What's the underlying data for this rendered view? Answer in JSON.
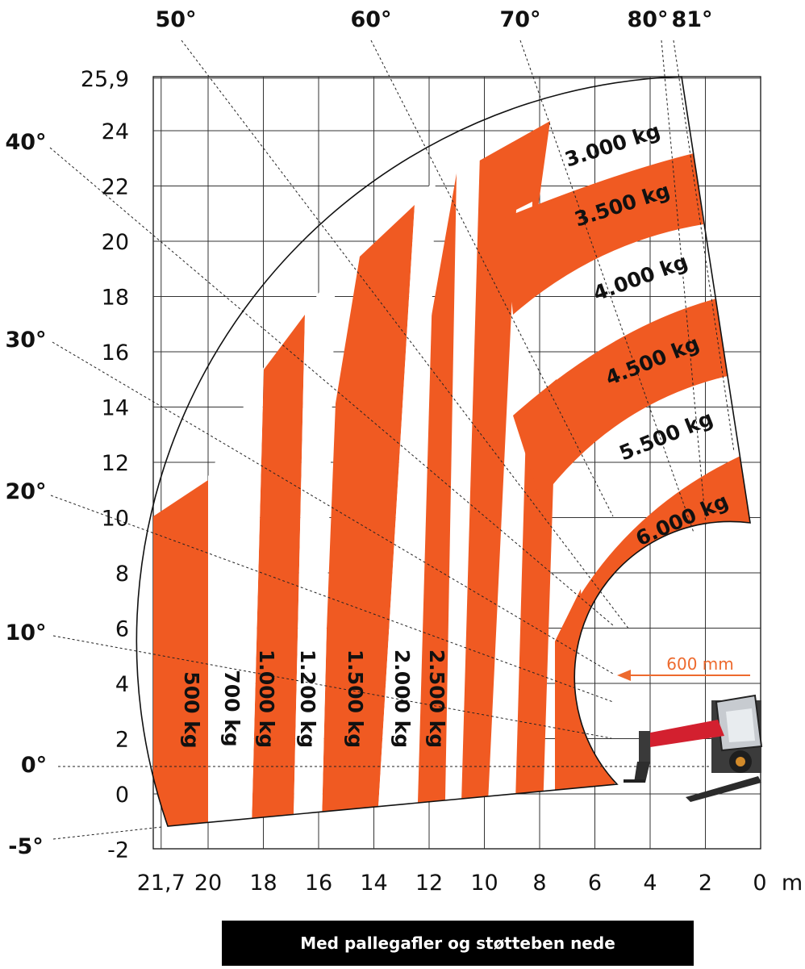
{
  "chart_data": {
    "type": "area",
    "title": "",
    "xlabel": "m",
    "ylabel": "",
    "xlim": [
      21.7,
      0
    ],
    "ylim": [
      -2,
      25.9
    ],
    "grid": true,
    "x_ticks": [
      {
        "value": 21.7,
        "label": "21,7"
      },
      {
        "value": 20,
        "label": "20"
      },
      {
        "value": 18,
        "label": "18"
      },
      {
        "value": 16,
        "label": "16"
      },
      {
        "value": 14,
        "label": "14"
      },
      {
        "value": 12,
        "label": "12"
      },
      {
        "value": 10,
        "label": "10"
      },
      {
        "value": 8,
        "label": "8"
      },
      {
        "value": 6,
        "label": "6"
      },
      {
        "value": 4,
        "label": "4"
      },
      {
        "value": 2,
        "label": "2"
      },
      {
        "value": 0,
        "label": "0"
      }
    ],
    "y_ticks": [
      {
        "value": 25.9,
        "label": "25,9"
      },
      {
        "value": 24,
        "label": "24"
      },
      {
        "value": 22,
        "label": "22"
      },
      {
        "value": 20,
        "label": "20"
      },
      {
        "value": 18,
        "label": "18"
      },
      {
        "value": 16,
        "label": "16"
      },
      {
        "value": 14,
        "label": "14"
      },
      {
        "value": 12,
        "label": "12"
      },
      {
        "value": 10,
        "label": "10"
      },
      {
        "value": 8,
        "label": "8"
      },
      {
        "value": 6,
        "label": "6"
      },
      {
        "value": 4,
        "label": "4"
      },
      {
        "value": 2,
        "label": "2"
      },
      {
        "value": 0,
        "label": "0"
      },
      {
        "value": -2,
        "label": "-2"
      }
    ],
    "boom_angles": [
      {
        "label": "50°",
        "angle": 50
      },
      {
        "label": "60°",
        "angle": 60
      },
      {
        "label": "70°",
        "angle": 70
      },
      {
        "label": "80°",
        "angle": 80
      },
      {
        "label": "81°",
        "angle": 81
      },
      {
        "label": "40°",
        "angle": 40
      },
      {
        "label": "30°",
        "angle": 30
      },
      {
        "label": "20°",
        "angle": 20
      },
      {
        "label": "10°",
        "angle": 10
      },
      {
        "label": "0°",
        "angle": 0
      },
      {
        "label": "-5°",
        "angle": -5
      }
    ],
    "load_zones": [
      {
        "label": "500 kg",
        "x_range": [
          21.4,
          20.0
        ],
        "top_height": 11.3
      },
      {
        "label": "700 kg",
        "x_range": [
          20.0,
          18.4
        ],
        "top_height": 13.5
      },
      {
        "label": "1.000 kg",
        "x_range": [
          18.4,
          16.8
        ],
        "top_height": 17.2
      },
      {
        "label": "1.200 kg",
        "x_range": [
          16.8,
          15.2
        ],
        "top_height": 19.5
      },
      {
        "label": "1.500 kg",
        "x_range": [
          15.2,
          13.2
        ],
        "top_height": 21.3
      },
      {
        "label": "2.000 kg",
        "x_range": [
          13.2,
          11.2
        ],
        "top_height": 23.0
      },
      {
        "label": "2.500 kg",
        "x_range": [
          11.2,
          9.2
        ],
        "top_height": 24.3
      },
      {
        "label": "3.000 kg",
        "x_range": [
          9.2,
          2.5
        ],
        "top_height": 25.9
      },
      {
        "label": "3.500 kg",
        "x_range": [
          9.2,
          2.0
        ],
        "top_height": 23.1
      },
      {
        "label": "4.000 kg",
        "x_range": [
          8.0,
          1.5
        ],
        "top_height": 20.4
      },
      {
        "label": "4.500 kg",
        "x_range": [
          8.6,
          1.1
        ],
        "top_height": 17.8
      },
      {
        "label": "5.500 kg",
        "x_range": [
          8.6,
          0.8
        ],
        "top_height": 15.1
      },
      {
        "label": "6.000 kg",
        "x_range": [
          7.4,
          0.5
        ],
        "top_height": 12.2
      }
    ],
    "annotations": [
      {
        "text": "600 mm",
        "color": "#ed6a2e"
      }
    ],
    "colors": {
      "zone": "#f05a22",
      "annotation": "#ed6a2e",
      "boom": "#d3202f"
    }
  },
  "footer": {
    "text": "Med pallegafler og støtteben nede"
  }
}
